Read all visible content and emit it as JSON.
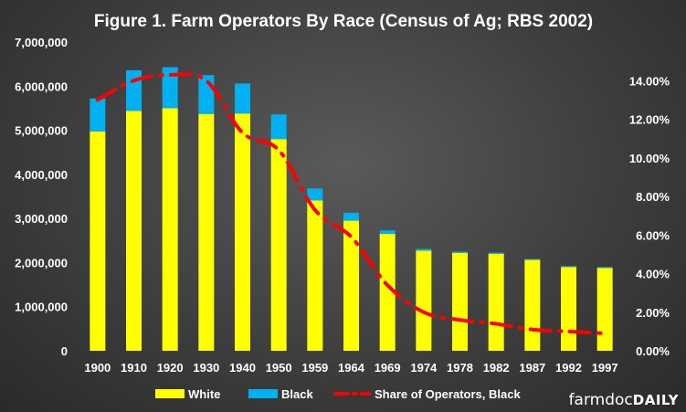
{
  "chart_data": {
    "type": "bar",
    "title": "Figure 1. Farm Operators By Race (Census of Ag; RBS 2002)",
    "categories": [
      "1900",
      "1910",
      "1920",
      "1930",
      "1940",
      "1950",
      "1959",
      "1964",
      "1969",
      "1974",
      "1978",
      "1982",
      "1987",
      "1992",
      "1997"
    ],
    "series": [
      {
        "name": "White",
        "kind": "stacked-bar",
        "axis": "left",
        "color": "#ffff00",
        "values": [
          4970000,
          5440000,
          5500000,
          5370000,
          5380000,
          4800000,
          3410000,
          2950000,
          2650000,
          2270000,
          2220000,
          2200000,
          2060000,
          1900000,
          1880000
        ]
      },
      {
        "name": "Black",
        "kind": "stacked-bar",
        "axis": "left",
        "color": "#00b0f0",
        "values": [
          750000,
          920000,
          930000,
          880000,
          680000,
          560000,
          270000,
          180000,
          80000,
          40000,
          30000,
          25000,
          20000,
          18000,
          18000
        ]
      },
      {
        "name": "Share of Operators, Black",
        "kind": "line",
        "style": "long-dash-dot",
        "axis": "right",
        "color": "#ff0000",
        "values": [
          0.13,
          0.14,
          0.143,
          0.14,
          0.113,
          0.104,
          0.073,
          0.059,
          0.034,
          0.02,
          0.016,
          0.014,
          0.011,
          0.01,
          0.009
        ]
      }
    ],
    "y_left": {
      "ylim": [
        0,
        7000000
      ],
      "ticks": [
        0,
        1000000,
        2000000,
        3000000,
        4000000,
        5000000,
        6000000,
        7000000
      ],
      "tick_labels": [
        "0",
        "1,000,000",
        "2,000,000",
        "3,000,000",
        "4,000,000",
        "5,000,000",
        "6,000,000",
        "7,000,000"
      ]
    },
    "y_right": {
      "ylim": [
        0,
        0.16
      ],
      "ticks": [
        0,
        0.02,
        0.04,
        0.06,
        0.08,
        0.1,
        0.12,
        0.14
      ],
      "tick_labels": [
        "0.00%",
        "2.00%",
        "4.00%",
        "6.00%",
        "8.00%",
        "10.00%",
        "12.00%",
        "14.00%"
      ]
    },
    "grid": false,
    "legend": {
      "position": "bottom",
      "entries": [
        "White",
        "Black",
        "Share of Operators, Black"
      ]
    }
  },
  "branding": {
    "part1": "farmdoc",
    "part2": "DAILY"
  }
}
